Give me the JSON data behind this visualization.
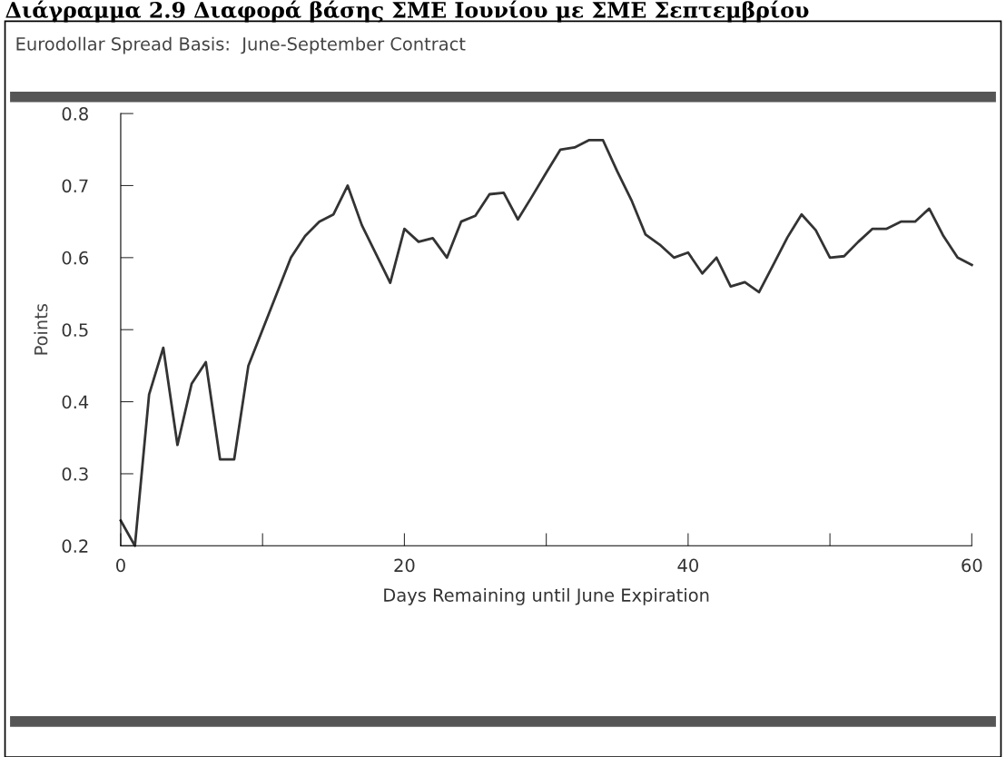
{
  "chart_data": {
    "type": "line",
    "title": "Eurodollar Spread Basis:  June-September Contract",
    "annotations": [
      "Διάγραμμα 2.9 Διαφορά βάσης ΣΜΕ Ιουνίου με ΣΜΕ Σεπτεμβρίου"
    ],
    "xlabel": "Days Remaining until June Expiration",
    "ylabel": "Points",
    "x": [
      0,
      1,
      2,
      3,
      4,
      5,
      6,
      7,
      8,
      9,
      10,
      11,
      12,
      13,
      14,
      15,
      16,
      17,
      18,
      19,
      20,
      21,
      22,
      23,
      24,
      25,
      26,
      27,
      28,
      29,
      30,
      31,
      32,
      33,
      34,
      35,
      36,
      37,
      38,
      39,
      40,
      41,
      42,
      43,
      44,
      45,
      46,
      47,
      48,
      49,
      50,
      51,
      52,
      53,
      54,
      55,
      56,
      57,
      58,
      59,
      60
    ],
    "series": [
      {
        "color": "#333333",
        "values": [
          0.235,
          0.2,
          0.41,
          0.475,
          0.34,
          0.425,
          0.455,
          0.32,
          0.32,
          0.45,
          0.5,
          0.55,
          0.6,
          0.63,
          0.65,
          0.66,
          0.7,
          0.645,
          0.605,
          0.565,
          0.64,
          0.622,
          0.627,
          0.6,
          0.65,
          0.658,
          0.688,
          0.69,
          0.653,
          0.685,
          0.718,
          0.75,
          0.753,
          0.763,
          0.763,
          0.72,
          0.68,
          0.632,
          0.618,
          0.6,
          0.607,
          0.578,
          0.6,
          0.56,
          0.566,
          0.552,
          0.59,
          0.628,
          0.66,
          0.638,
          0.6,
          0.602,
          0.622,
          0.64,
          0.64,
          0.65,
          0.65,
          0.668,
          0.63,
          0.6,
          0.59
        ]
      }
    ],
    "xlim": [
      0,
      60
    ],
    "xticks": [
      0,
      {
        "value": 10,
        "label": null
      },
      20,
      {
        "value": 30,
        "label": null
      },
      40,
      {
        "value": 50,
        "label": null
      },
      60
    ],
    "ylim": [
      0.2,
      0.8
    ],
    "yticks": [
      0.2,
      0.3,
      0.4,
      0.5,
      0.6,
      0.7,
      0.8
    ],
    "grid": false,
    "marker": "none",
    "line_style": "solid"
  }
}
